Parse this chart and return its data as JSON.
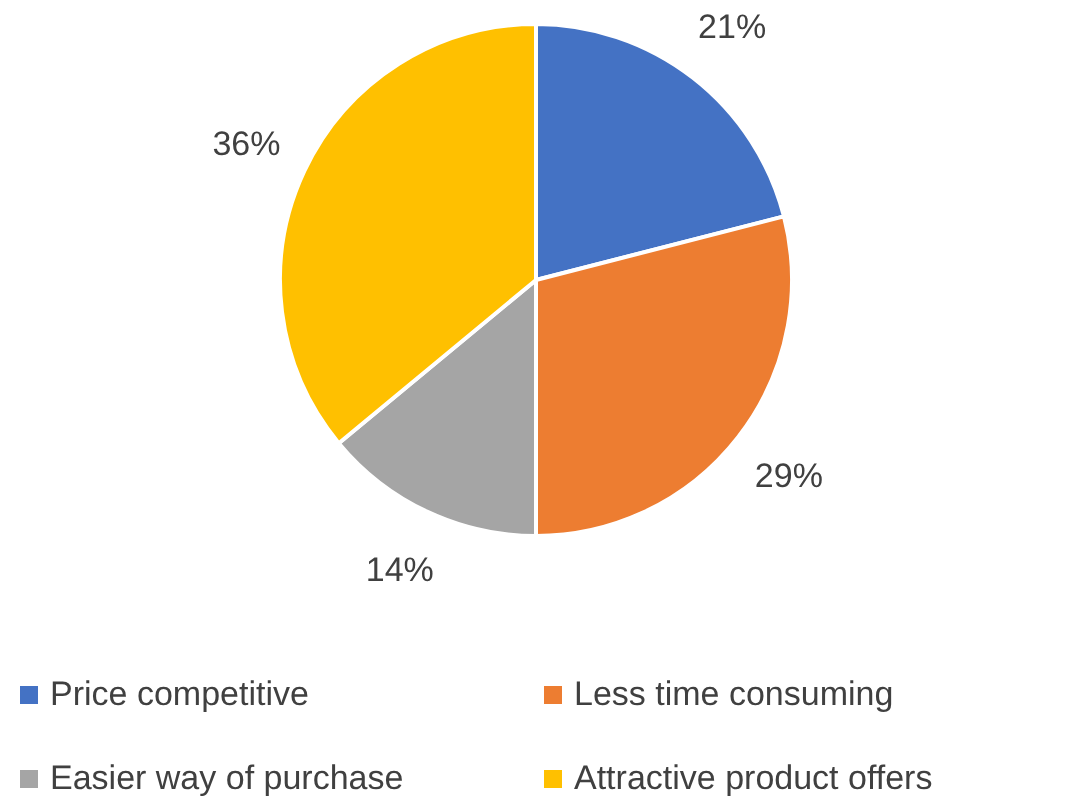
{
  "chart_data": {
    "type": "pie",
    "categories": [
      "Price competitive",
      "Less time consuming",
      "Easier way of purchase",
      "Attractive product offers"
    ],
    "values": [
      21,
      29,
      14,
      36
    ],
    "colors": [
      "#4472c4",
      "#ed7d31",
      "#a5a5a5",
      "#ffc000"
    ],
    "value_labels": [
      "21%",
      "29%",
      "14%",
      "36%"
    ],
    "legend": "bottom"
  }
}
